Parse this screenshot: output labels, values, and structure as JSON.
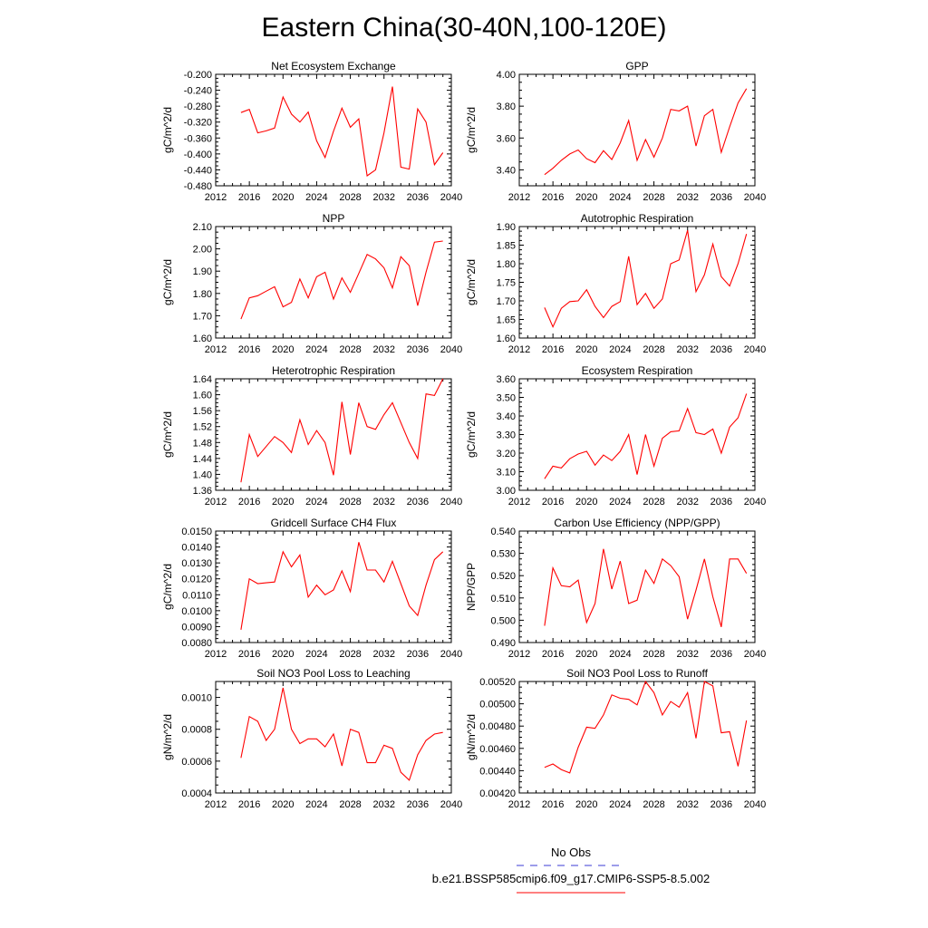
{
  "figure": {
    "title": "Eastern China(30-40N,100-120E)",
    "series_color": "#ff0000",
    "obs_color": "#3b3bd6"
  },
  "legend": {
    "obs_label": "No Obs",
    "model_label": "b.e21.BSSP585cmip6.f09_g17.CMIP6-SSP5-8.5.002"
  },
  "chart_data": [
    {
      "type": "line",
      "title": "Net Ecosystem Exchange",
      "ylabel": "gC/m^2/d",
      "xlim": [
        2012,
        2040
      ],
      "xticks": [
        2012,
        2016,
        2020,
        2024,
        2028,
        2032,
        2036,
        2040
      ],
      "ylim": [
        -0.48,
        -0.2
      ],
      "yticks": [
        -0.48,
        -0.44,
        -0.4,
        -0.36,
        -0.32,
        -0.28,
        -0.24,
        -0.2
      ],
      "ytick_labels": [
        "-0.480",
        "-0.440",
        "-0.400",
        "-0.360",
        "-0.320",
        "-0.280",
        "-0.240",
        "-0.200"
      ],
      "series": [
        {
          "x": [
            2015,
            2016,
            2017,
            2018,
            2019,
            2020,
            2021,
            2022,
            2023,
            2024,
            2025,
            2026,
            2027,
            2028,
            2029,
            2030,
            2031,
            2032,
            2033,
            2034,
            2035,
            2036,
            2037,
            2038,
            2039
          ],
          "y": [
            -0.296,
            -0.288,
            -0.347,
            -0.342,
            -0.335,
            -0.257,
            -0.3,
            -0.32,
            -0.295,
            -0.367,
            -0.409,
            -0.343,
            -0.285,
            -0.333,
            -0.312,
            -0.455,
            -0.44,
            -0.347,
            -0.231,
            -0.433,
            -0.438,
            -0.287,
            -0.32,
            -0.427,
            -0.397
          ]
        }
      ]
    },
    {
      "type": "line",
      "title": "GPP",
      "ylabel": "gC/m^2/d",
      "xlim": [
        2012,
        2040
      ],
      "xticks": [
        2012,
        2016,
        2020,
        2024,
        2028,
        2032,
        2036,
        2040
      ],
      "ylim": [
        3.3,
        4.0
      ],
      "yticks": [
        3.4,
        3.6,
        3.8,
        4.0
      ],
      "ytick_labels": [
        "3.40",
        "3.60",
        "3.80",
        "4.00"
      ],
      "series": [
        {
          "x": [
            2015,
            2016,
            2017,
            2018,
            2019,
            2020,
            2021,
            2022,
            2023,
            2024,
            2025,
            2026,
            2027,
            2028,
            2029,
            2030,
            2031,
            2032,
            2033,
            2034,
            2035,
            2036,
            2037,
            2038,
            2039
          ],
          "y": [
            3.37,
            3.41,
            3.46,
            3.5,
            3.525,
            3.47,
            3.445,
            3.52,
            3.465,
            3.57,
            3.71,
            3.46,
            3.59,
            3.48,
            3.6,
            3.78,
            3.77,
            3.8,
            3.55,
            3.74,
            3.78,
            3.51,
            3.67,
            3.82,
            3.91
          ]
        }
      ]
    },
    {
      "type": "line",
      "title": "NPP",
      "ylabel": "gC/m^2/d",
      "xlim": [
        2012,
        2040
      ],
      "xticks": [
        2012,
        2016,
        2020,
        2024,
        2028,
        2032,
        2036,
        2040
      ],
      "ylim": [
        1.6,
        2.1
      ],
      "yticks": [
        1.6,
        1.7,
        1.8,
        1.9,
        2.0,
        2.1
      ],
      "ytick_labels": [
        "1.60",
        "1.70",
        "1.80",
        "1.90",
        "2.00",
        "2.10"
      ],
      "series": [
        {
          "x": [
            2015,
            2016,
            2017,
            2018,
            2019,
            2020,
            2021,
            2022,
            2023,
            2024,
            2025,
            2026,
            2027,
            2028,
            2029,
            2030,
            2031,
            2032,
            2033,
            2034,
            2035,
            2036,
            2037,
            2038,
            2039
          ],
          "y": [
            1.685,
            1.78,
            1.79,
            1.81,
            1.83,
            1.74,
            1.76,
            1.865,
            1.78,
            1.875,
            1.895,
            1.775,
            1.87,
            1.805,
            1.89,
            1.975,
            1.955,
            1.915,
            1.825,
            1.965,
            1.925,
            1.745,
            1.895,
            2.03,
            2.035
          ]
        }
      ]
    },
    {
      "type": "line",
      "title": "Autotrophic Respiration",
      "ylabel": "gC/m^2/d",
      "xlim": [
        2012,
        2040
      ],
      "xticks": [
        2012,
        2016,
        2020,
        2024,
        2028,
        2032,
        2036,
        2040
      ],
      "ylim": [
        1.6,
        1.9
      ],
      "yticks": [
        1.6,
        1.65,
        1.7,
        1.75,
        1.8,
        1.85,
        1.9
      ],
      "ytick_labels": [
        "1.60",
        "1.65",
        "1.70",
        "1.75",
        "1.80",
        "1.85",
        "1.90"
      ],
      "series": [
        {
          "x": [
            2015,
            2016,
            2017,
            2018,
            2019,
            2020,
            2021,
            2022,
            2023,
            2024,
            2025,
            2026,
            2027,
            2028,
            2029,
            2030,
            2031,
            2032,
            2033,
            2034,
            2035,
            2036,
            2037,
            2038,
            2039
          ],
          "y": [
            1.682,
            1.63,
            1.68,
            1.698,
            1.7,
            1.73,
            1.685,
            1.655,
            1.685,
            1.698,
            1.82,
            1.69,
            1.72,
            1.68,
            1.705,
            1.8,
            1.81,
            1.89,
            1.725,
            1.77,
            1.853,
            1.765,
            1.74,
            1.8,
            1.88
          ]
        }
      ]
    },
    {
      "type": "line",
      "title": "Heterotrophic Respiration",
      "ylabel": "gC/m^2/d",
      "xlim": [
        2012,
        2040
      ],
      "xticks": [
        2012,
        2016,
        2020,
        2024,
        2028,
        2032,
        2036,
        2040
      ],
      "ylim": [
        1.36,
        1.64
      ],
      "yticks": [
        1.36,
        1.4,
        1.44,
        1.48,
        1.52,
        1.56,
        1.6,
        1.64
      ],
      "ytick_labels": [
        "1.36",
        "1.40",
        "1.44",
        "1.48",
        "1.52",
        "1.56",
        "1.60",
        "1.64"
      ],
      "series": [
        {
          "x": [
            2015,
            2016,
            2017,
            2018,
            2019,
            2020,
            2021,
            2022,
            2023,
            2024,
            2025,
            2026,
            2027,
            2028,
            2029,
            2030,
            2031,
            2032,
            2033,
            2034,
            2035,
            2036,
            2037,
            2038,
            2039
          ],
          "y": [
            1.38,
            1.5,
            1.445,
            1.47,
            1.495,
            1.48,
            1.455,
            1.537,
            1.475,
            1.51,
            1.48,
            1.398,
            1.582,
            1.45,
            1.58,
            1.52,
            1.513,
            1.55,
            1.58,
            1.53,
            1.48,
            1.44,
            1.602,
            1.598,
            1.64
          ]
        }
      ]
    },
    {
      "type": "line",
      "title": "Ecosystem Respiration",
      "ylabel": "gC/m^2/d",
      "xlim": [
        2012,
        2040
      ],
      "xticks": [
        2012,
        2016,
        2020,
        2024,
        2028,
        2032,
        2036,
        2040
      ],
      "ylim": [
        3.0,
        3.6
      ],
      "yticks": [
        3.0,
        3.1,
        3.2,
        3.3,
        3.4,
        3.5,
        3.6
      ],
      "ytick_labels": [
        "3.00",
        "3.10",
        "3.20",
        "3.30",
        "3.40",
        "3.50",
        "3.60"
      ],
      "series": [
        {
          "x": [
            2015,
            2016,
            2017,
            2018,
            2019,
            2020,
            2021,
            2022,
            2023,
            2024,
            2025,
            2026,
            2027,
            2028,
            2029,
            2030,
            2031,
            2032,
            2033,
            2034,
            2035,
            2036,
            2037,
            2038,
            2039
          ],
          "y": [
            3.062,
            3.13,
            3.12,
            3.17,
            3.195,
            3.21,
            3.135,
            3.19,
            3.16,
            3.21,
            3.3,
            3.085,
            3.3,
            3.13,
            3.28,
            3.315,
            3.32,
            3.44,
            3.31,
            3.3,
            3.33,
            3.2,
            3.34,
            3.39,
            3.52
          ]
        }
      ]
    },
    {
      "type": "line",
      "title": "Gridcell Surface CH4 Flux",
      "ylabel": "gC/m^2/d",
      "xlim": [
        2012,
        2040
      ],
      "xticks": [
        2012,
        2016,
        2020,
        2024,
        2028,
        2032,
        2036,
        2040
      ],
      "ylim": [
        0.008,
        0.015
      ],
      "yticks": [
        0.008,
        0.009,
        0.01,
        0.011,
        0.012,
        0.013,
        0.014,
        0.015
      ],
      "ytick_labels": [
        "0.0080",
        "0.0090",
        "0.0100",
        "0.0110",
        "0.0120",
        "0.0130",
        "0.0140",
        "0.0150"
      ],
      "series": [
        {
          "x": [
            2015,
            2016,
            2017,
            2018,
            2019,
            2020,
            2021,
            2022,
            2023,
            2024,
            2025,
            2026,
            2027,
            2028,
            2029,
            2030,
            2031,
            2032,
            2033,
            2034,
            2035,
            2036,
            2037,
            2038,
            2039
          ],
          "y": [
            0.0088,
            0.012,
            0.0117,
            0.01175,
            0.0118,
            0.0137,
            0.01275,
            0.0135,
            0.01085,
            0.0116,
            0.011,
            0.0113,
            0.0125,
            0.0112,
            0.0143,
            0.01255,
            0.01255,
            0.0118,
            0.0131,
            0.0117,
            0.0103,
            0.0097,
            0.0116,
            0.0132,
            0.0137
          ]
        }
      ]
    },
    {
      "type": "line",
      "title": "Carbon Use Efficiency (NPP/GPP)",
      "ylabel": "NPP/GPP",
      "xlim": [
        2012,
        2040
      ],
      "xticks": [
        2012,
        2016,
        2020,
        2024,
        2028,
        2032,
        2036,
        2040
      ],
      "ylim": [
        0.49,
        0.54
      ],
      "yticks": [
        0.49,
        0.5,
        0.51,
        0.52,
        0.53,
        0.54
      ],
      "ytick_labels": [
        "0.490",
        "0.500",
        "0.510",
        "0.520",
        "0.530",
        "0.540"
      ],
      "series": [
        {
          "x": [
            2015,
            2016,
            2017,
            2018,
            2019,
            2020,
            2021,
            2022,
            2023,
            2024,
            2025,
            2026,
            2027,
            2028,
            2029,
            2030,
            2031,
            2032,
            2033,
            2034,
            2035,
            2036,
            2037,
            2038,
            2039
          ],
          "y": [
            0.4975,
            0.5235,
            0.5155,
            0.515,
            0.518,
            0.499,
            0.5075,
            0.532,
            0.514,
            0.5265,
            0.5075,
            0.509,
            0.5225,
            0.5165,
            0.5275,
            0.5245,
            0.5195,
            0.5005,
            0.5135,
            0.5275,
            0.5105,
            0.497,
            0.5275,
            0.5275,
            0.521
          ]
        }
      ]
    },
    {
      "type": "line",
      "title": "Soil NO3 Pool Loss to Leaching",
      "ylabel": "gN/m^2/d",
      "xlim": [
        2012,
        2040
      ],
      "xticks": [
        2012,
        2016,
        2020,
        2024,
        2028,
        2032,
        2036,
        2040
      ],
      "ylim": [
        0.0004,
        0.0011
      ],
      "yticks": [
        0.0004,
        0.0006,
        0.0008,
        0.001
      ],
      "ytick_labels": [
        "0.0004",
        "0.0006",
        "0.0008",
        "0.0010"
      ],
      "series": [
        {
          "x": [
            2015,
            2016,
            2017,
            2018,
            2019,
            2020,
            2021,
            2022,
            2023,
            2024,
            2025,
            2026,
            2027,
            2028,
            2029,
            2030,
            2031,
            2032,
            2033,
            2034,
            2035,
            2036,
            2037,
            2038,
            2039
          ],
          "y": [
            0.00062,
            0.00088,
            0.00085,
            0.00073,
            0.0008,
            0.00106,
            0.0008,
            0.00071,
            0.00074,
            0.00074,
            0.00069,
            0.00077,
            0.00057,
            0.0008,
            0.00078,
            0.00059,
            0.00059,
            0.0007,
            0.00068,
            0.00053,
            0.00048,
            0.00064,
            0.00073,
            0.00077,
            0.00078
          ]
        }
      ]
    },
    {
      "type": "line",
      "title": "Soil NO3 Pool Loss to Runoff",
      "ylabel": "gN/m^2/d",
      "xlim": [
        2012,
        2040
      ],
      "xticks": [
        2012,
        2016,
        2020,
        2024,
        2028,
        2032,
        2036,
        2040
      ],
      "ylim": [
        0.0042,
        0.0052
      ],
      "yticks": [
        0.0042,
        0.0044,
        0.0046,
        0.0048,
        0.005,
        0.0052
      ],
      "ytick_labels": [
        "0.00420",
        "0.00440",
        "0.00460",
        "0.00480",
        "0.00500",
        "0.00520"
      ],
      "series": [
        {
          "x": [
            2015,
            2016,
            2017,
            2018,
            2019,
            2020,
            2021,
            2022,
            2023,
            2024,
            2025,
            2026,
            2027,
            2028,
            2029,
            2030,
            2031,
            2032,
            2033,
            2034,
            2035,
            2036,
            2037,
            2038,
            2039
          ],
          "y": [
            0.00443,
            0.00446,
            0.00441,
            0.00438,
            0.00461,
            0.00479,
            0.00478,
            0.0049,
            0.00508,
            0.00505,
            0.00504,
            0.00499,
            0.0052,
            0.0051,
            0.0049,
            0.00502,
            0.00497,
            0.0051,
            0.00469,
            0.0052,
            0.00516,
            0.00474,
            0.00475,
            0.00444,
            0.00485
          ]
        }
      ]
    }
  ]
}
